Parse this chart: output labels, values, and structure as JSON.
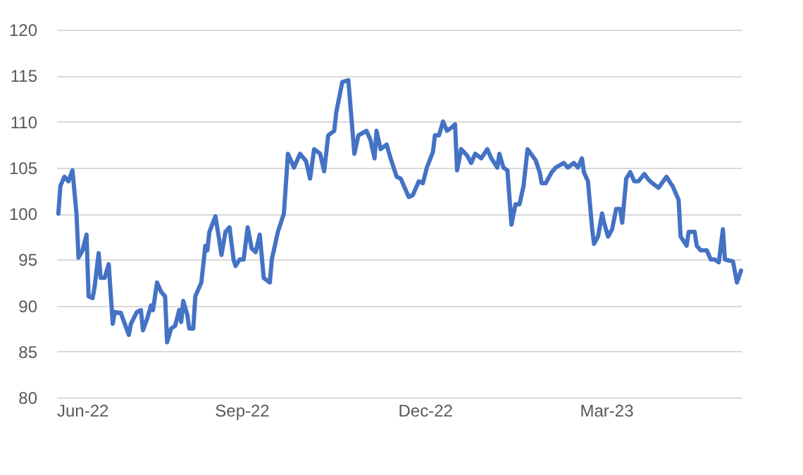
{
  "chart_data": {
    "type": "line",
    "xlim": [
      "2022-06-01",
      "2023-05-07"
    ],
    "ylim": [
      80,
      120
    ],
    "yticks": [
      80,
      85,
      90,
      95,
      100,
      105,
      110,
      115,
      120
    ],
    "xticks": [
      {
        "value": "2022-06-01",
        "label": "Jun-22"
      },
      {
        "value": "2022-09-01",
        "label": "Sep-22"
      },
      {
        "value": "2022-12-01",
        "label": "Dec-22"
      },
      {
        "value": "2023-03-01",
        "label": "Mar-23"
      }
    ],
    "grid": "y",
    "marker": "none",
    "line_style": "solid",
    "x": [
      "2022-06-02",
      "2022-06-03",
      "2022-06-05",
      "2022-06-07",
      "2022-06-09",
      "2022-06-11",
      "2022-06-12",
      "2022-06-14",
      "2022-06-16",
      "2022-06-17",
      "2022-06-19",
      "2022-06-20",
      "2022-06-22",
      "2022-06-23",
      "2022-06-25",
      "2022-06-27",
      "2022-06-29",
      "2022-06-30",
      "2022-07-03",
      "2022-07-05",
      "2022-07-07",
      "2022-07-08",
      "2022-07-11",
      "2022-07-13",
      "2022-07-14",
      "2022-07-16",
      "2022-07-18",
      "2022-07-19",
      "2022-07-21",
      "2022-07-23",
      "2022-07-25",
      "2022-07-26",
      "2022-07-28",
      "2022-07-30",
      "2022-08-01",
      "2022-08-02",
      "2022-08-03",
      "2022-08-05",
      "2022-08-06",
      "2022-08-08",
      "2022-08-09",
      "2022-08-12",
      "2022-08-14",
      "2022-08-15",
      "2022-08-16",
      "2022-08-19",
      "2022-08-21",
      "2022-08-22",
      "2022-08-24",
      "2022-08-26",
      "2022-08-28",
      "2022-08-29",
      "2022-08-31",
      "2022-09-02",
      "2022-09-04",
      "2022-09-06",
      "2022-09-08",
      "2022-09-10",
      "2022-09-12",
      "2022-09-15",
      "2022-09-16",
      "2022-09-19",
      "2022-09-22",
      "2022-09-24",
      "2022-09-27",
      "2022-09-30",
      "2022-10-03",
      "2022-10-05",
      "2022-10-07",
      "2022-10-10",
      "2022-10-12",
      "2022-10-14",
      "2022-10-17",
      "2022-10-18",
      "2022-10-21",
      "2022-10-24",
      "2022-10-27",
      "2022-10-29",
      "2022-11-02",
      "2022-11-04",
      "2022-11-06",
      "2022-11-07",
      "2022-11-09",
      "2022-11-12",
      "2022-11-14",
      "2022-11-17",
      "2022-11-19",
      "2022-11-23",
      "2022-11-25",
      "2022-11-28",
      "2022-11-30",
      "2022-12-02",
      "2022-12-05",
      "2022-12-06",
      "2022-12-08",
      "2022-12-10",
      "2022-12-12",
      "2022-12-14",
      "2022-12-16",
      "2022-12-17",
      "2022-12-19",
      "2022-12-22",
      "2022-12-24",
      "2022-12-26",
      "2022-12-29",
      "2023-01-01",
      "2023-01-03",
      "2023-01-06",
      "2023-01-07",
      "2023-01-09",
      "2023-01-11",
      "2023-01-13",
      "2023-01-15",
      "2023-01-17",
      "2023-01-19",
      "2023-01-21",
      "2023-01-25",
      "2023-01-27",
      "2023-01-28",
      "2023-01-30",
      "2023-02-02",
      "2023-02-04",
      "2023-02-08",
      "2023-02-10",
      "2023-02-13",
      "2023-02-15",
      "2023-02-17",
      "2023-02-18",
      "2023-02-20",
      "2023-02-22",
      "2023-02-23",
      "2023-02-25",
      "2023-02-27",
      "2023-02-28",
      "2023-03-02",
      "2023-03-04",
      "2023-03-06",
      "2023-03-08",
      "2023-03-09",
      "2023-03-11",
      "2023-03-13",
      "2023-03-15",
      "2023-03-17",
      "2023-03-20",
      "2023-03-22",
      "2023-03-24",
      "2023-03-27",
      "2023-03-31",
      "2023-04-02",
      "2023-04-03",
      "2023-04-06",
      "2023-04-07",
      "2023-04-10",
      "2023-04-11",
      "2023-04-14",
      "2023-04-15",
      "2023-04-17",
      "2023-04-20",
      "2023-04-22",
      "2023-04-24",
      "2023-04-26",
      "2023-04-28",
      "2023-04-29",
      "2023-05-03",
      "2023-05-05",
      "2023-05-07"
    ],
    "series": [
      {
        "color": "#4472c4",
        "values": [
          100,
          103,
          104,
          103.5,
          104.7,
          100,
          95.2,
          96,
          97.7,
          91,
          90.8,
          92,
          95.7,
          93,
          93,
          94.5,
          88,
          89.3,
          89.2,
          88,
          86.8,
          88,
          89.3,
          89.5,
          87.3,
          88.5,
          90,
          89.5,
          92.5,
          91.5,
          91,
          86,
          87.5,
          87.8,
          89.5,
          88.2,
          90.5,
          89,
          87.5,
          87.5,
          91,
          92.5,
          96.5,
          96,
          98,
          99.7,
          97,
          95.5,
          98,
          98.5,
          95,
          94.3,
          95,
          95,
          98.5,
          96.2,
          95.8,
          97.7,
          93,
          92.5,
          95,
          98,
          100,
          106.5,
          105,
          106.5,
          105.7,
          103.8,
          107,
          106.5,
          104.6,
          108.5,
          109,
          111,
          114.3,
          114.5,
          106.5,
          108.5,
          109,
          108,
          106,
          109,
          107,
          107.5,
          106,
          104,
          103.8,
          101.8,
          102,
          103.5,
          103.3,
          105,
          106.7,
          108.5,
          108.5,
          110,
          109,
          109.3,
          109.7,
          104.7,
          107,
          106.3,
          105.5,
          106.5,
          106,
          107,
          106,
          105,
          106.5,
          105,
          104.7,
          98.8,
          101,
          101,
          103,
          107,
          105.8,
          104.5,
          103.3,
          103.3,
          104.5,
          105,
          105.5,
          105,
          105.5,
          105,
          106,
          104.5,
          103.5,
          98.5,
          96.7,
          97.5,
          100,
          99,
          97.5,
          98.3,
          100.5,
          100.5,
          99,
          103.8,
          104.5,
          103.5,
          103.5,
          104.3,
          103.7,
          103.3,
          102.8,
          104,
          103.3,
          103,
          101.5,
          97.5,
          96.5,
          98,
          98,
          96.5,
          96,
          96,
          95,
          95,
          94.7,
          98.3,
          95,
          94.8,
          92.5,
          93.8
        ]
      }
    ]
  }
}
